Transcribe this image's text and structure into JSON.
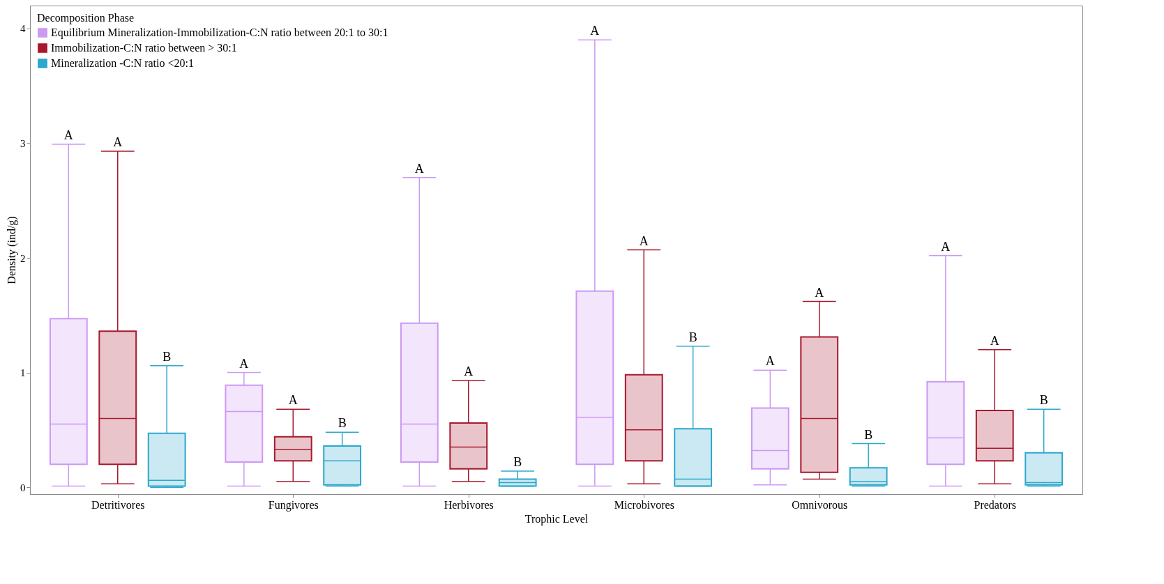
{
  "chart_data": {
    "type": "box",
    "xlabel": "Trophic Level",
    "ylabel": "Density (ind/g)",
    "legend_title": "Decomposition Phase",
    "legend": "top left",
    "grid": false,
    "categories": [
      "Detritivores",
      "Fungivores",
      "Herbivores",
      "Microbivores",
      "Omnivorous",
      "Predators"
    ],
    "ylim": [
      -0.06,
      4.2
    ],
    "yticks": [
      0,
      1,
      2,
      3,
      4
    ],
    "series": [
      {
        "name": "Equilibrium Mineralization-Immobilization-C:N ratio between 20:1 to 30:1",
        "color": "#cc99f5",
        "boxes": [
          {
            "low": 0.01,
            "q1": 0.2,
            "median": 0.55,
            "q3": 1.47,
            "high": 2.99
          },
          {
            "low": 0.01,
            "q1": 0.22,
            "median": 0.66,
            "q3": 0.89,
            "high": 1.0
          },
          {
            "low": 0.01,
            "q1": 0.22,
            "median": 0.55,
            "q3": 1.43,
            "high": 2.7
          },
          {
            "low": 0.01,
            "q1": 0.2,
            "median": 0.61,
            "q3": 1.71,
            "high": 3.9
          },
          {
            "low": 0.02,
            "q1": 0.16,
            "median": 0.32,
            "q3": 0.69,
            "high": 1.02
          },
          {
            "low": 0.01,
            "q1": 0.2,
            "median": 0.43,
            "q3": 0.92,
            "high": 2.02
          }
        ]
      },
      {
        "name": "Immobilization-C:N ratio between > 30:1",
        "color": "#a8182e",
        "boxes": [
          {
            "low": 0.03,
            "q1": 0.2,
            "median": 0.6,
            "q3": 1.36,
            "high": 2.93
          },
          {
            "low": 0.05,
            "q1": 0.23,
            "median": 0.33,
            "q3": 0.44,
            "high": 0.68
          },
          {
            "low": 0.05,
            "q1": 0.16,
            "median": 0.35,
            "q3": 0.56,
            "high": 0.93
          },
          {
            "low": 0.03,
            "q1": 0.23,
            "median": 0.5,
            "q3": 0.98,
            "high": 2.07
          },
          {
            "low": 0.07,
            "q1": 0.13,
            "median": 0.6,
            "q3": 1.31,
            "high": 1.62
          },
          {
            "low": 0.03,
            "q1": 0.23,
            "median": 0.34,
            "q3": 0.67,
            "high": 1.2
          }
        ]
      },
      {
        "name": "Mineralization -C:N ratio <20:1",
        "color": "#2ba8cc",
        "boxes": [
          {
            "low": 0.0,
            "q1": 0.01,
            "median": 0.06,
            "q3": 0.47,
            "high": 1.06
          },
          {
            "low": 0.01,
            "q1": 0.02,
            "median": 0.23,
            "q3": 0.36,
            "high": 0.48
          },
          {
            "low": 0.01,
            "q1": 0.01,
            "median": 0.04,
            "q3": 0.07,
            "high": 0.14
          },
          {
            "low": 0.01,
            "q1": 0.01,
            "median": 0.07,
            "q3": 0.51,
            "high": 1.23
          },
          {
            "low": 0.01,
            "q1": 0.02,
            "median": 0.05,
            "q3": 0.17,
            "high": 0.38
          },
          {
            "low": 0.01,
            "q1": 0.02,
            "median": 0.04,
            "q3": 0.3,
            "high": 0.68
          }
        ]
      }
    ],
    "annotations": [
      "A",
      "A",
      "B",
      "A",
      "A",
      "B",
      "A",
      "A",
      "B",
      "A",
      "A",
      "B",
      "A",
      "A",
      "B",
      "A",
      "A",
      "B"
    ]
  }
}
